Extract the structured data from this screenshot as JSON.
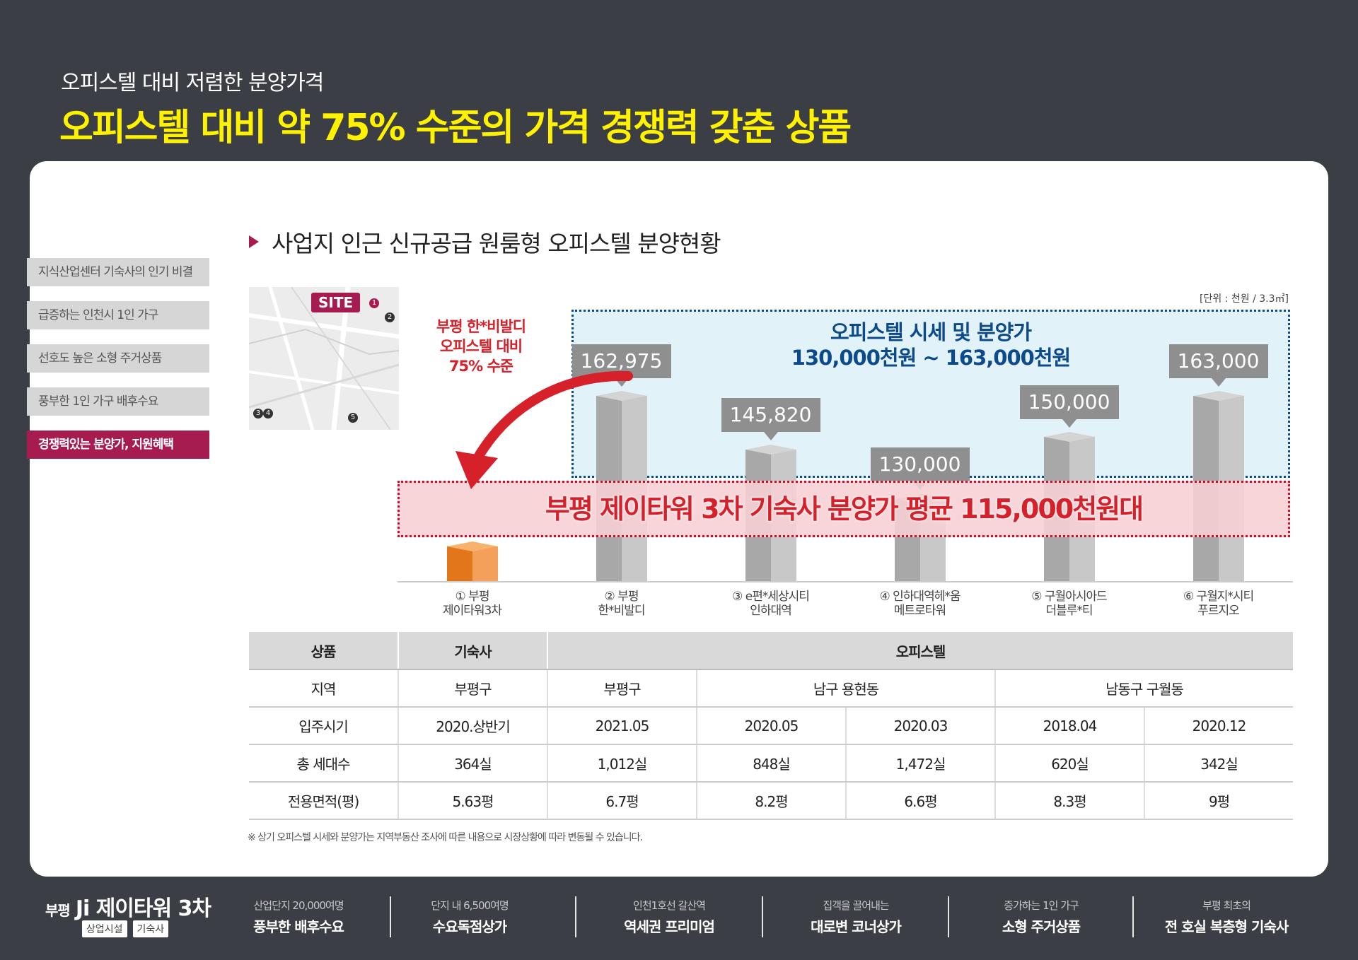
{
  "header": {
    "subtitle": "오피스텔 대비 저렴한 분양가격",
    "title": "오피스텔 대비 약 75% 수준의 가격 경쟁력 갖춘 상품"
  },
  "sidebar": {
    "items": [
      {
        "label": "지식산업센터 기숙사의 인기 비결",
        "active": false
      },
      {
        "label": "급증하는 인천시 1인 가구",
        "active": false
      },
      {
        "label": "선호도 높은 소형 주거상품",
        "active": false
      },
      {
        "label": "풍부한 1인 가구 배후수요",
        "active": false
      },
      {
        "label": "경쟁력있는 분양가, 지원혜택",
        "active": true
      }
    ]
  },
  "section": {
    "title": "사업지 인근 신규공급 원룸형 오피스텔 분양현황"
  },
  "map": {
    "badge": "SITE"
  },
  "chart_meta": {
    "unit": "[단위 : 천원 / 3.3㎡]",
    "arrow_text_1": "부평 한*비발디",
    "arrow_text_2": "오피스텔 대비",
    "arrow_text_3": "75% 수준",
    "blue_title_1": "오피스텔 시세 및 분양가",
    "blue_title_2": "130,000천원 ~ 163,000천원",
    "pink_text": "부평 제이타워 3차 기숙사 분양가 평균 115,000천원대"
  },
  "chart_data": {
    "type": "bar",
    "categories": [
      "① 부평 제이타워3차",
      "② 부평 한*비발디",
      "③ e편*세상시티 인하대역",
      "④ 인하대역헤*움 메트로타워",
      "⑤ 구월아시아드 더블루*티",
      "⑥ 구월지*시티 푸르지오"
    ],
    "label_lines": [
      [
        "① 부평",
        "제이타워3차"
      ],
      [
        "② 부평",
        "한*비발디"
      ],
      [
        "③ e편*세상시티",
        "인하대역"
      ],
      [
        "④ 인하대역헤*움",
        "메트로타워"
      ],
      [
        "⑤ 구월아시아드",
        "더블루*티"
      ],
      [
        "⑥ 구월지*시티",
        "푸르지오"
      ]
    ],
    "values": [
      115000,
      162975,
      145820,
      130000,
      150000,
      163000
    ],
    "value_labels": [
      "",
      "162,975",
      "145,820",
      "130,000",
      "150,000",
      "163,000"
    ],
    "colors": {
      "highlight_left": "#e2761b",
      "highlight_right": "#f4a05a",
      "highlight_top": "#f7b36d",
      "base_left": "#a8a8a8",
      "base_right": "#c8c8c8",
      "base_top": "#d4d4d4"
    },
    "ylim": [
      0,
      175000
    ]
  },
  "table": {
    "header": [
      "상품",
      "기숙사",
      "오피스텔"
    ],
    "rows": [
      {
        "label": "지역",
        "cells": [
          "부평구",
          "부평구",
          "남구 용현동",
          "남동구 구월동"
        ]
      },
      {
        "label": "입주시기",
        "cells": [
          "2020.상반기",
          "2021.05",
          "2020.05",
          "2020.03",
          "2018.04",
          "2020.12"
        ]
      },
      {
        "label": "총 세대수",
        "cells": [
          "364실",
          "1,012실",
          "848실",
          "1,472실",
          "620실",
          "342실"
        ]
      },
      {
        "label": "전용면적(평)",
        "cells": [
          "5.63평",
          "6.7평",
          "8.2평",
          "6.6평",
          "8.3평",
          "9평"
        ]
      }
    ]
  },
  "footnote": "※ 상기 오피스텔 시세와 분양가는 지역부동산 조사에 따른 내용으로 시장상황에 따라 변동될 수 있습니다.",
  "footer": {
    "brand_prefix": "부평",
    "brand_name": "Ji 제이타워 3차",
    "tag1": "상업시설",
    "tag2": "기숙사",
    "items": [
      {
        "l1": "산업단지 20,000여명",
        "l2": "풍부한 배후수요"
      },
      {
        "l1": "단지 내 6,500여명",
        "l2": "수요독점상가"
      },
      {
        "l1": "인천1호선 갈산역",
        "l2": "역세권 프리미엄"
      },
      {
        "l1": "집객을 끌어내는",
        "l2": "대로변 코너상가"
      },
      {
        "l1": "증가하는 1인 가구",
        "l2": "소형 주거상품"
      },
      {
        "l1": "부평 최초의",
        "l2": "전 호실 복층형 기숙사"
      }
    ]
  }
}
